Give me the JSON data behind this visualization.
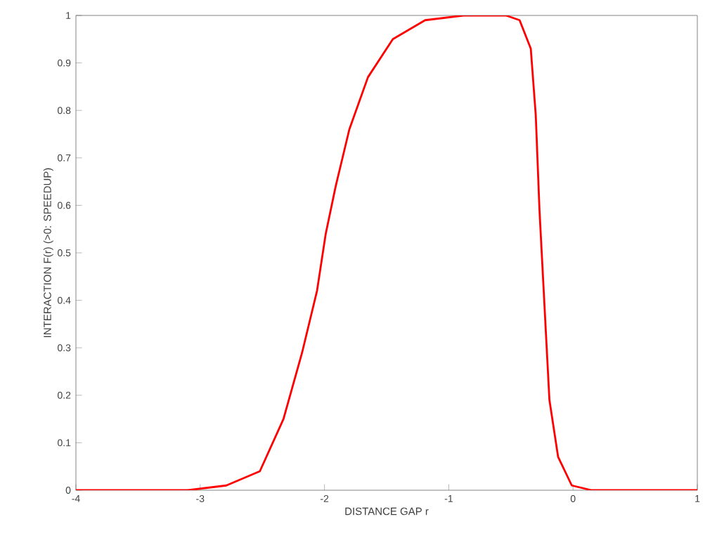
{
  "chart_data": {
    "type": "line",
    "xlabel": "DISTANCE GAP r",
    "ylabel": "INTERACTION F(r) (>0: SPEEDUP)",
    "xlim": [
      -4,
      1
    ],
    "ylim": [
      0,
      1
    ],
    "xticks": [
      -4,
      -3,
      -2,
      -1,
      0,
      1
    ],
    "yticks": [
      0,
      0.1,
      0.2,
      0.3,
      0.4,
      0.5,
      0.6,
      0.7,
      0.8,
      0.9,
      1
    ],
    "grid": false,
    "marker": "none",
    "line_style": "solid",
    "series": [
      {
        "color": "#ff0000",
        "x": [
          -4,
          -3.5,
          -3.1,
          -2.79,
          -2.52,
          -2.33,
          -2.18,
          -2.06,
          -1.99,
          -1.91,
          -1.8,
          -1.65,
          -1.45,
          -1.19,
          -0.88,
          -0.54,
          -0.43,
          -0.34,
          -0.3,
          -0.27,
          -0.23,
          -0.19,
          -0.12,
          -0.01,
          0.15,
          0.5,
          1
        ],
        "values": [
          0,
          0,
          0,
          0.01,
          0.04,
          0.15,
          0.29,
          0.42,
          0.54,
          0.64,
          0.76,
          0.87,
          0.95,
          0.99,
          1,
          1,
          0.99,
          0.93,
          0.79,
          0.59,
          0.39,
          0.19,
          0.07,
          0.01,
          0,
          0,
          0
        ]
      }
    ]
  }
}
